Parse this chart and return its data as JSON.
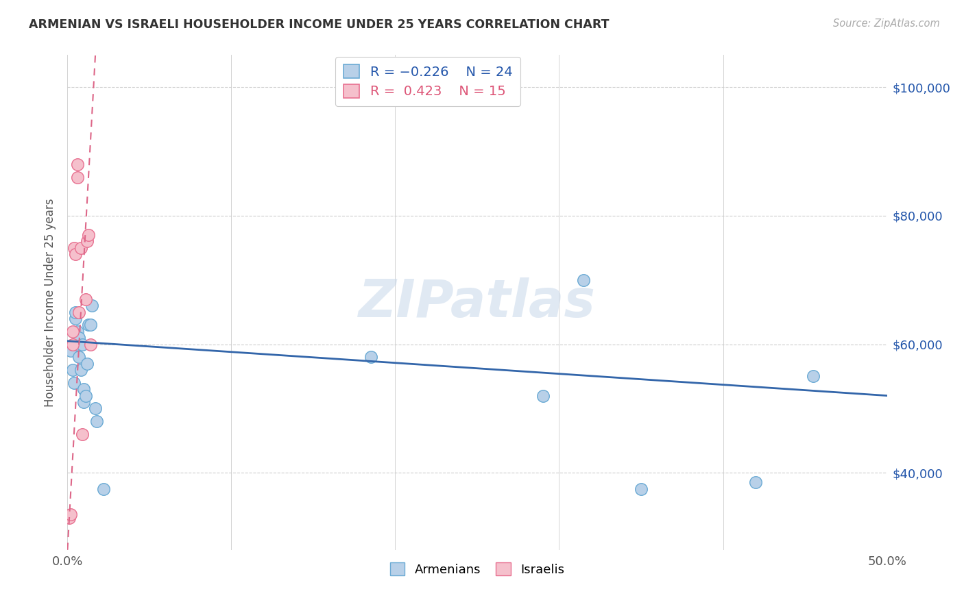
{
  "title": "ARMENIAN VS ISRAELI HOUSEHOLDER INCOME UNDER 25 YEARS CORRELATION CHART",
  "source": "Source: ZipAtlas.com",
  "ylabel_label": "Householder Income Under 25 years",
  "xlim": [
    0.0,
    0.5
  ],
  "ylim": [
    28000,
    105000
  ],
  "yticks": [
    40000,
    60000,
    80000,
    100000
  ],
  "xticks": [
    0.0,
    0.1,
    0.2,
    0.3,
    0.4,
    0.5
  ],
  "xtick_labels": [
    "0.0%",
    "",
    "",
    "",
    "",
    "50.0%"
  ],
  "ytick_labels": [
    "$40,000",
    "$60,000",
    "$80,000",
    "$100,000"
  ],
  "background_color": "#ffffff",
  "grid_color": "#cccccc",
  "armenian_color": "#b8d0e8",
  "armenian_edge_color": "#6aaad4",
  "israeli_color": "#f5c0cc",
  "israeli_edge_color": "#e87090",
  "armenian_trendline_color": "#3366aa",
  "israeli_trendline_color": "#dd6688",
  "watermark": "ZIPatlas",
  "armenian_x": [
    0.002,
    0.003,
    0.004,
    0.005,
    0.005,
    0.006,
    0.006,
    0.007,
    0.007,
    0.008,
    0.009,
    0.01,
    0.01,
    0.011,
    0.012,
    0.013,
    0.014,
    0.015,
    0.017,
    0.018,
    0.022,
    0.185,
    0.29,
    0.315,
    0.35,
    0.42,
    0.455
  ],
  "armenian_y": [
    59000,
    56000,
    54000,
    64000,
    65000,
    60000,
    62000,
    58000,
    61000,
    56000,
    60000,
    51000,
    53000,
    52000,
    57000,
    63000,
    63000,
    66000,
    50000,
    48000,
    37500,
    58000,
    52000,
    70000,
    37500,
    38500,
    55000
  ],
  "israeli_x": [
    0.001,
    0.002,
    0.003,
    0.003,
    0.004,
    0.005,
    0.006,
    0.006,
    0.007,
    0.008,
    0.009,
    0.011,
    0.012,
    0.013,
    0.014
  ],
  "israeli_y": [
    33000,
    33500,
    60000,
    62000,
    75000,
    74000,
    86000,
    88000,
    65000,
    75000,
    46000,
    67000,
    76000,
    77000,
    60000
  ],
  "arm_trend_x0": 0.0,
  "arm_trend_x1": 0.5,
  "arm_trend_y0": 60500,
  "arm_trend_y1": 52000,
  "isr_trend_x0": 0.0,
  "isr_trend_x1": 0.017,
  "isr_trend_y0": 28000,
  "isr_trend_y1": 105000
}
